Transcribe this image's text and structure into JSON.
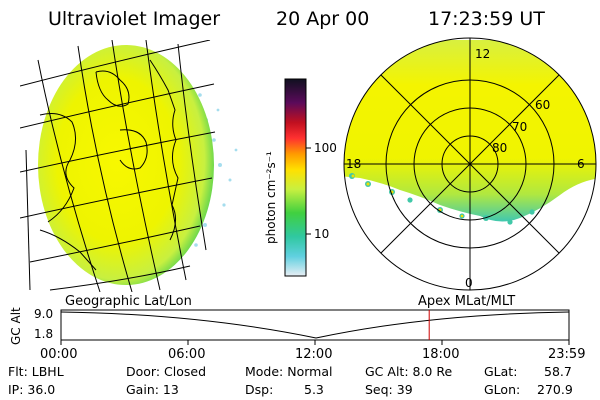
{
  "header": {
    "instrument": "Ultraviolet Imager",
    "date": "20 Apr 00",
    "time": "17:23:59 UT"
  },
  "colorbar": {
    "unit_label": "photon cm⁻²s⁻¹",
    "ticks": [
      "100",
      "10"
    ],
    "colors": [
      "#101020",
      "#5a0a5a",
      "#c01020",
      "#ff3030",
      "#ff9a00",
      "#ffe000",
      "#c8f040",
      "#40d040",
      "#30c8a0",
      "#60d0e0",
      "#e8eef4"
    ]
  },
  "panels": {
    "left": {
      "title": "Geographic Lat/Lon",
      "fill_colors": [
        "#f4f400",
        "#c8f040",
        "#50d050",
        "#40c0c0"
      ]
    },
    "right": {
      "title": "Apex MLat/MLT",
      "mlt_labels": {
        "top": "12",
        "right": "6",
        "left": "18",
        "bottom": "0"
      },
      "lat_labels": [
        "60",
        "70",
        "80"
      ]
    }
  },
  "timeline": {
    "axis_label": "GC Alt",
    "y_ticks": [
      "9.0",
      "1.8"
    ],
    "x_ticks": [
      "00:00",
      "06:00",
      "12:00",
      "18:00",
      "23:59"
    ],
    "current_time_fraction": 0.7248,
    "marker_color": "#cc0000"
  },
  "info": {
    "flt": "Flt: LBHL",
    "ip": "IP: 36.0",
    "door": "Door: Closed",
    "gain": "Gain: 13",
    "mode": "Mode: Normal",
    "dsp": "Dsp:",
    "dsp_value": "5.3",
    "gcalt": "GC Alt: 8.0 Re",
    "seq": "Seq: 39",
    "glat_label": "GLat:",
    "glat_value": "58.7",
    "glon_label": "GLon:",
    "glon_value": "270.9"
  }
}
